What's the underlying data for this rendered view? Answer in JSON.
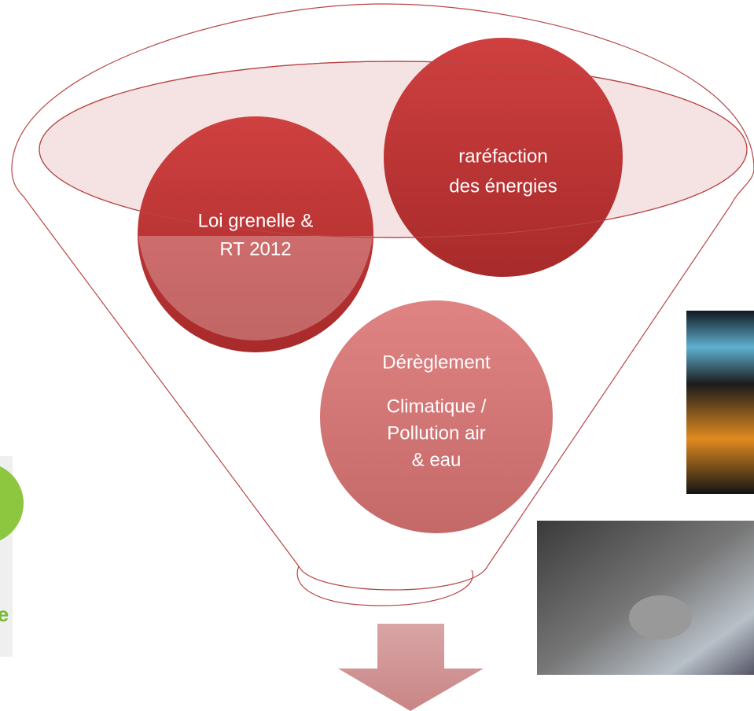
{
  "nodes": [
    {
      "lines": [
        "Loi grenelle &",
        "RT 2012"
      ]
    },
    {
      "lines": [
        "raréfaction",
        "des énergies"
      ]
    },
    {
      "lines": [
        "Dérèglement",
        "Climatique  /",
        "Pollution air",
        "& eau"
      ]
    }
  ],
  "logo": {
    "text": "e"
  }
}
